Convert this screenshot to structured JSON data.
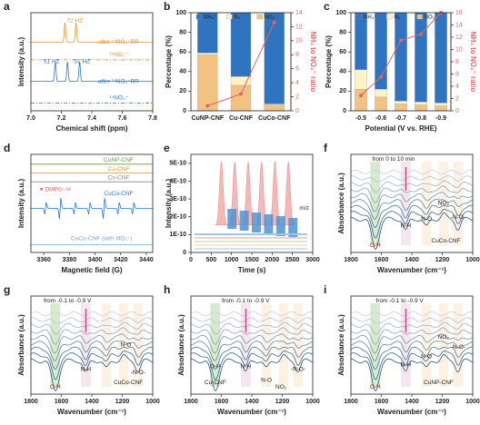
{
  "chart_data": [
    {
      "type": "spectrum",
      "label": "a",
      "xlabel": "Chemical shift (ppm)",
      "ylabel": "Intensity (a.u.)",
      "xlim": [
        7.0,
        7.8
      ],
      "xticks": [
        {
          "value": 7.0,
          "label": "7.0"
        },
        7.2,
        7.4,
        7.6,
        7.8
      ],
      "annotations": [
        "72 HZ",
        "after ¹⁵NO₂⁻RR",
        "¹⁵NO₂⁻",
        "51 HZ",
        "51 HZ",
        "after ¹⁴NO₂⁻RR",
        "¹⁴NO₂⁻"
      ]
    },
    {
      "type": "bar",
      "label": "b",
      "ylabel": "Percentage (%)",
      "y2label": "NH₃ to NO₂⁻ ratio",
      "categories": [
        "CuNP-CNF",
        "Cu-CNF",
        "CuCo-CNF"
      ],
      "series": [
        {
          "name": "NH₄⁺",
          "color": "#2f74c0",
          "values": [
            41,
            65,
            93
          ]
        },
        {
          "name": "N₂",
          "color": "#fff2c4",
          "values": [
            2,
            9,
            1
          ]
        },
        {
          "name": "NO₂⁻",
          "color": "#f2c283",
          "values": [
            57,
            26,
            6
          ]
        },
        {
          "name": "NH₃ to NO₂⁻ ratio",
          "color": "#e06666",
          "axis": "y2",
          "values": [
            0.7,
            2.4,
            12.6
          ]
        }
      ],
      "ylim": [
        0,
        100
      ],
      "yticks": [
        0,
        20,
        40,
        60,
        80,
        100
      ],
      "y2lim": [
        0,
        14
      ],
      "y2ticks": [
        0,
        2,
        4,
        6,
        8,
        10,
        12,
        14
      ]
    },
    {
      "type": "bar",
      "label": "c",
      "xlabel": "Potential (V vs. RHE)",
      "ylabel": "Percentage (%)",
      "y2label": "NH₃ to NO₂⁻ ratio",
      "categories": [
        "-0.5",
        "-0.6",
        "-0.7",
        "-0.8",
        "-0.9"
      ],
      "series": [
        {
          "name": "NH₄⁺",
          "color": "#2f74c0",
          "values": [
            58,
            78,
            90,
            91,
            92
          ]
        },
        {
          "name": "N₂",
          "color": "#fff2c4",
          "values": [
            20,
            8,
            3,
            3,
            3
          ]
        },
        {
          "name": "NO₂⁻",
          "color": "#f2c283",
          "values": [
            22,
            14,
            7,
            6,
            5
          ]
        },
        {
          "name": "NH₃ to NO₂⁻ ratio",
          "color": "#e06666",
          "axis": "y2",
          "values": [
            2.5,
            5.5,
            11.5,
            12.5,
            16
          ]
        }
      ],
      "ylim": [
        0,
        100
      ],
      "yticks": [
        0,
        20,
        40,
        60,
        80,
        100
      ],
      "y2lim": [
        0,
        16
      ],
      "y2ticks": [
        0,
        2,
        4,
        6,
        8,
        10,
        12,
        14,
        16
      ]
    },
    {
      "type": "spectrum",
      "label": "d",
      "xlabel": "Magnetic field (G)",
      "ylabel": "Intensity (a.u.)",
      "xlim": [
        3350,
        3445
      ],
      "xticks": [
        3360,
        3380,
        3400,
        3420,
        3440
      ],
      "annotations": [
        "CuNP-CNF",
        "Cu-CNF",
        "Co-CNF",
        "♥ DMPO-·H",
        "CuCo-CNF",
        "CuCo-CNF (with NO₂⁻)"
      ]
    },
    {
      "type": "ms",
      "label": "e",
      "xlabel": "Time (s)",
      "ylabel": "Intensity (a.u.)",
      "xlim": [
        0,
        3000
      ],
      "xticks": [
        0,
        500,
        1000,
        1500,
        2000,
        2500,
        3000
      ],
      "ylim": [
        0,
        5.5e-10
      ],
      "yticks": [
        0,
        {
          "value": 1e-10,
          "label": "1E-10"
        },
        {
          "value": 2e-10,
          "label": "2E-10"
        },
        {
          "value": 3e-10,
          "label": "3E-10"
        },
        {
          "value": 4e-10,
          "label": "4E-10"
        },
        {
          "value": 5e-10,
          "label": "5E-10"
        }
      ],
      "annotations": [
        "m/z"
      ]
    },
    {
      "type": "spectrum",
      "label": "f",
      "xlabel": "Wavenumber (cm⁻¹)",
      "ylabel": "Absorbance (a.u.)",
      "xlim": [
        1800,
        1000
      ],
      "xticks": [
        1800,
        1600,
        1400,
        1200,
        1000
      ],
      "annotations": [
        "from 0 to 10 min",
        "O-H",
        "N-H",
        "N-O",
        "NO₂",
        "-N-O-",
        "CuCo-CNF"
      ]
    },
    {
      "type": "spectrum",
      "label": "g",
      "xlabel": "Wavenumber (cm⁻¹)",
      "ylabel": "Absorbance (a.u.)",
      "xlim": [
        1800,
        1000
      ],
      "xticks": [
        1800,
        1600,
        1400,
        1200,
        1000
      ],
      "annotations": [
        "from -0.1 to -0.9 V",
        "O-H",
        "N-H",
        "N-O",
        "-N-O-",
        "CuCo-CNF"
      ]
    },
    {
      "type": "spectrum",
      "label": "h",
      "xlabel": "Wavenumber (cm⁻¹)",
      "ylabel": "Absorbance (a.u.)",
      "xlim": [
        1800,
        1000
      ],
      "xticks": [
        1800,
        1600,
        1400,
        1200,
        1000
      ],
      "annotations": [
        "from -0.1 to -0.9 V",
        "O-H",
        "N-H",
        "N-O",
        "NO₂",
        "-N-O-",
        "Cu-CNF"
      ]
    },
    {
      "type": "spectrum",
      "label": "i",
      "xlabel": "Wavenumber (cm⁻¹)",
      "ylabel": "Absorbance (a.u.)",
      "xlim": [
        1800,
        1000
      ],
      "xticks": [
        1800,
        1600,
        1400,
        1200,
        1000
      ],
      "annotations": [
        "from -0.1 to -0.9 V",
        "O-H",
        "N-H",
        "N-O",
        "NO₂",
        "-N-O-",
        "CuNP-CNF"
      ]
    }
  ]
}
